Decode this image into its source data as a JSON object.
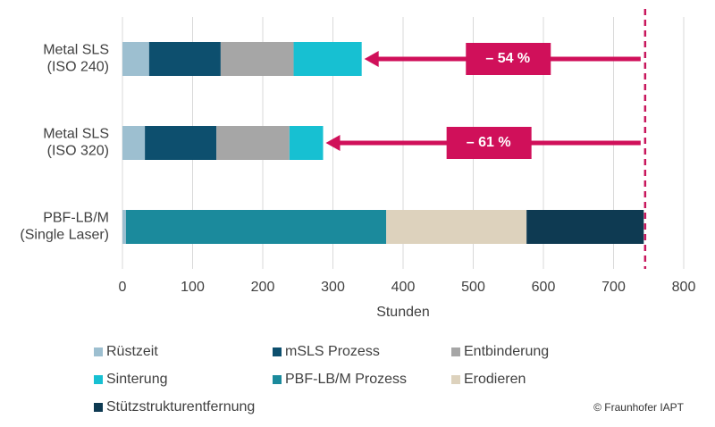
{
  "chart_data": {
    "type": "bar",
    "orientation": "horizontal",
    "stacked": true,
    "categories": [
      "Metal SLS\n(ISO 240)",
      "Metal SLS\n(ISO 320)",
      "PBF-LB/M\n(Single Laser)"
    ],
    "series": [
      {
        "name": "Rüstzeit",
        "color": "#9dbfd0",
        "values": [
          38,
          32,
          5
        ]
      },
      {
        "name": "mSLS Prozess",
        "color": "#0d4f6e",
        "values": [
          102,
          102,
          null
        ]
      },
      {
        "name": "Entbinderung",
        "color": "#a6a6a6",
        "values": [
          104,
          104,
          null
        ]
      },
      {
        "name": "Sinterung",
        "color": "#17c0d2",
        "values": [
          97,
          48,
          null
        ]
      },
      {
        "name": "PBF-LB/M Prozess",
        "color": "#1b8a9c",
        "values": [
          null,
          null,
          371
        ]
      },
      {
        "name": "Erodieren",
        "color": "#ddd2bd",
        "values": [
          null,
          null,
          200
        ]
      },
      {
        "name": "Stützstrukturentfernung",
        "color": "#0e3a52",
        "values": [
          null,
          null,
          167
        ]
      }
    ],
    "xlim": [
      0,
      800
    ],
    "xticks": [
      0,
      100,
      200,
      300,
      400,
      500,
      600,
      700,
      800
    ],
    "xlabel": "Stunden",
    "grid": true,
    "reference_line": 745,
    "reference_color": "#c8175d",
    "annotations": [
      "– 54 %",
      "– 61 %",
      null
    ],
    "annotation_color": "#d0105a",
    "credit": "© Fraunhofer IAPT"
  }
}
